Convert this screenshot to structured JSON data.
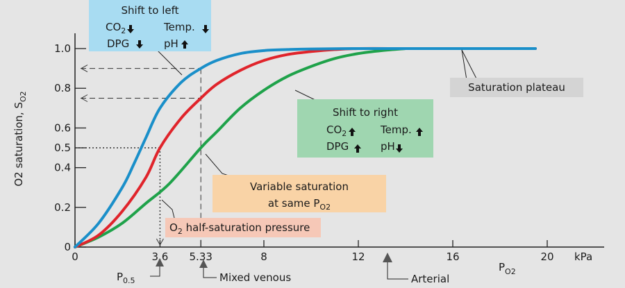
{
  "chart_data": {
    "type": "line",
    "title": "",
    "xlabel": "P",
    "xlabel_sub": "O2",
    "x_unit": "kPa",
    "ylabel": "O2 saturation, S",
    "ylabel_sub": "O2",
    "xlim": [
      0,
      22
    ],
    "ylim": [
      0,
      1.08
    ],
    "x_ticks": [
      {
        "value": 0,
        "label": "0"
      },
      {
        "value": 3.6,
        "label": "3.6"
      },
      {
        "value": 5.33,
        "label": "5.33"
      },
      {
        "value": 8,
        "label": "8"
      },
      {
        "value": 12,
        "label": "12"
      },
      {
        "value": 16,
        "label": "16"
      },
      {
        "value": 20,
        "label": "20"
      }
    ],
    "y_ticks": [
      {
        "value": 0,
        "label": "0"
      },
      {
        "value": 0.2,
        "label": "0.2"
      },
      {
        "value": 0.4,
        "label": "0.4"
      },
      {
        "value": 0.5,
        "label": "0.5"
      },
      {
        "value": 0.6,
        "label": "0.6"
      },
      {
        "value": 0.8,
        "label": "0.8"
      },
      {
        "value": 1.0,
        "label": "1.0"
      }
    ],
    "series": [
      {
        "key": "left",
        "color": "#1a8fc9",
        "x": [
          0,
          1,
          2,
          2.5,
          3,
          3.6,
          4.5,
          5.33,
          6,
          7,
          8,
          9,
          10,
          12,
          14,
          16,
          18,
          19.5
        ],
        "y": [
          0,
          0.12,
          0.3,
          0.42,
          0.55,
          0.7,
          0.83,
          0.9,
          0.94,
          0.975,
          0.99,
          0.995,
          0.998,
          1.0,
          1.0,
          1.0,
          1.0,
          1.0
        ]
      },
      {
        "key": "normal",
        "color": "#e0242b",
        "x": [
          0,
          1,
          2,
          3,
          3.6,
          4.5,
          5.33,
          6,
          7,
          8,
          9,
          10,
          11,
          12,
          14,
          16,
          18,
          19.5
        ],
        "y": [
          0,
          0.06,
          0.18,
          0.35,
          0.5,
          0.65,
          0.75,
          0.82,
          0.89,
          0.94,
          0.97,
          0.985,
          0.995,
          1.0,
          1.0,
          1.0,
          1.0,
          1.0
        ]
      },
      {
        "key": "right",
        "color": "#1fa24a",
        "x": [
          0,
          1,
          2,
          3,
          4,
          5.33,
          6,
          7,
          8,
          9,
          10,
          11,
          12,
          13,
          14
        ],
        "y": [
          0,
          0.05,
          0.12,
          0.22,
          0.32,
          0.5,
          0.58,
          0.7,
          0.79,
          0.86,
          0.91,
          0.95,
          0.975,
          0.99,
          1.0
        ]
      }
    ],
    "guides": {
      "half_sat_x": 3.6,
      "half_sat_y": 0.5,
      "venous_x": 5.33,
      "left_y": 0.9,
      "normal_y": 0.75,
      "right_y": 0.5
    },
    "annotations": {
      "shift_left": {
        "title": "Shift to left",
        "l1a": "CO",
        "l1a_sub": "2",
        "l1a_arrow": "down",
        "l1b": "Temp.",
        "l1b_arrow": "down",
        "l2a": "DPG",
        "l2a_arrow": "down",
        "l2b": "pH",
        "l2b_arrow": "up",
        "color": "#a8dcf2"
      },
      "shift_right": {
        "title": "Shift to right",
        "l1a": "CO",
        "l1a_sub": "2",
        "l1a_arrow": "up",
        "l1b": "Temp.",
        "l1b_arrow": "up",
        "l2a": "DPG",
        "l2a_arrow": "up",
        "l2b": "pH",
        "l2b_arrow": "down",
        "color": "#9fd6b0"
      },
      "plateau": {
        "text": "Saturation plateau",
        "color": "#d4d4d4"
      },
      "variable": {
        "line1": "Variable saturation",
        "line2": "at same P",
        "line2_sub": "O2",
        "color": "#f9d3a6"
      },
      "half_pressure": {
        "pre": "O",
        "pre_sub": "2",
        "text": " half-saturation pressure",
        "color": "#f6c8b7"
      },
      "p05": {
        "text": "P",
        "sub": "0.5"
      },
      "mixed_venous": "Mixed venous",
      "arterial": "Arterial"
    }
  }
}
